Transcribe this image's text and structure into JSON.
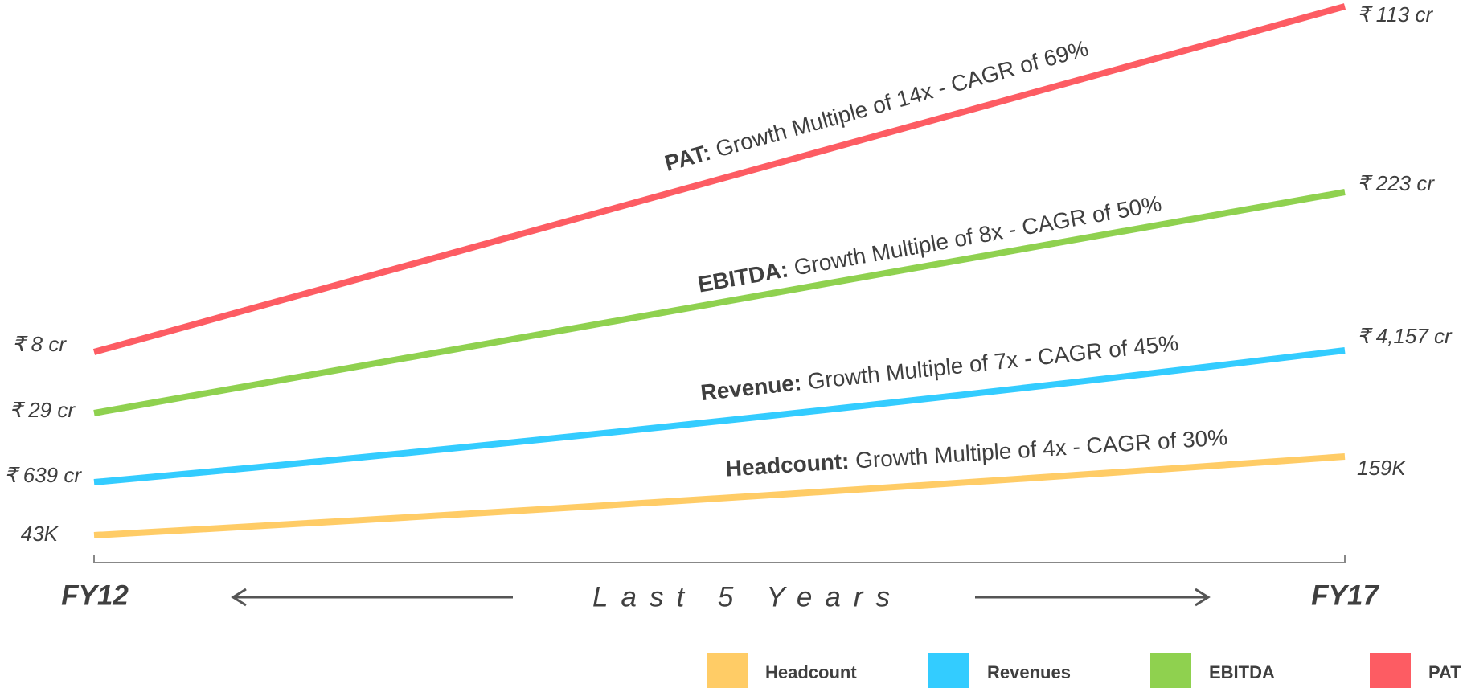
{
  "x_labels": [
    "FY12",
    "FY17"
  ],
  "axis_caption": "Last 5 Years",
  "series": [
    {
      "color": "#fd5c63",
      "start": "₹ 8 cr",
      "end": "₹ 113 cr",
      "label_bold": "PAT:",
      "label": " Growth Multiple of 14x - CAGR  of  69%"
    },
    {
      "color": "#8fd14f",
      "start": "₹ 29 cr",
      "end": "₹ 223 cr",
      "label_bold": "EBITDA:",
      "label": " Growth Multiple of 8x - CAGR  of  50%"
    },
    {
      "color": "#33ccff",
      "start": "₹ 639 cr",
      "end": "₹ 4,157 cr",
      "label_bold": "Revenue:",
      "label": " Growth Multiple of 7x - CAGR  of  45%"
    },
    {
      "color": "#ffcc66",
      "start": "43K",
      "end": "159K",
      "label_bold": "Headcount:",
      "label": " Growth Multiple of 4x - CAGR  of 30%"
    }
  ],
  "legend": [
    {
      "name": "Headcount",
      "color": "#ffcc66"
    },
    {
      "name": "Revenues",
      "color": "#33ccff"
    },
    {
      "name": "EBITDA",
      "color": "#8fd14f"
    },
    {
      "name": "PAT",
      "color": "#fd5c63"
    }
  ]
}
